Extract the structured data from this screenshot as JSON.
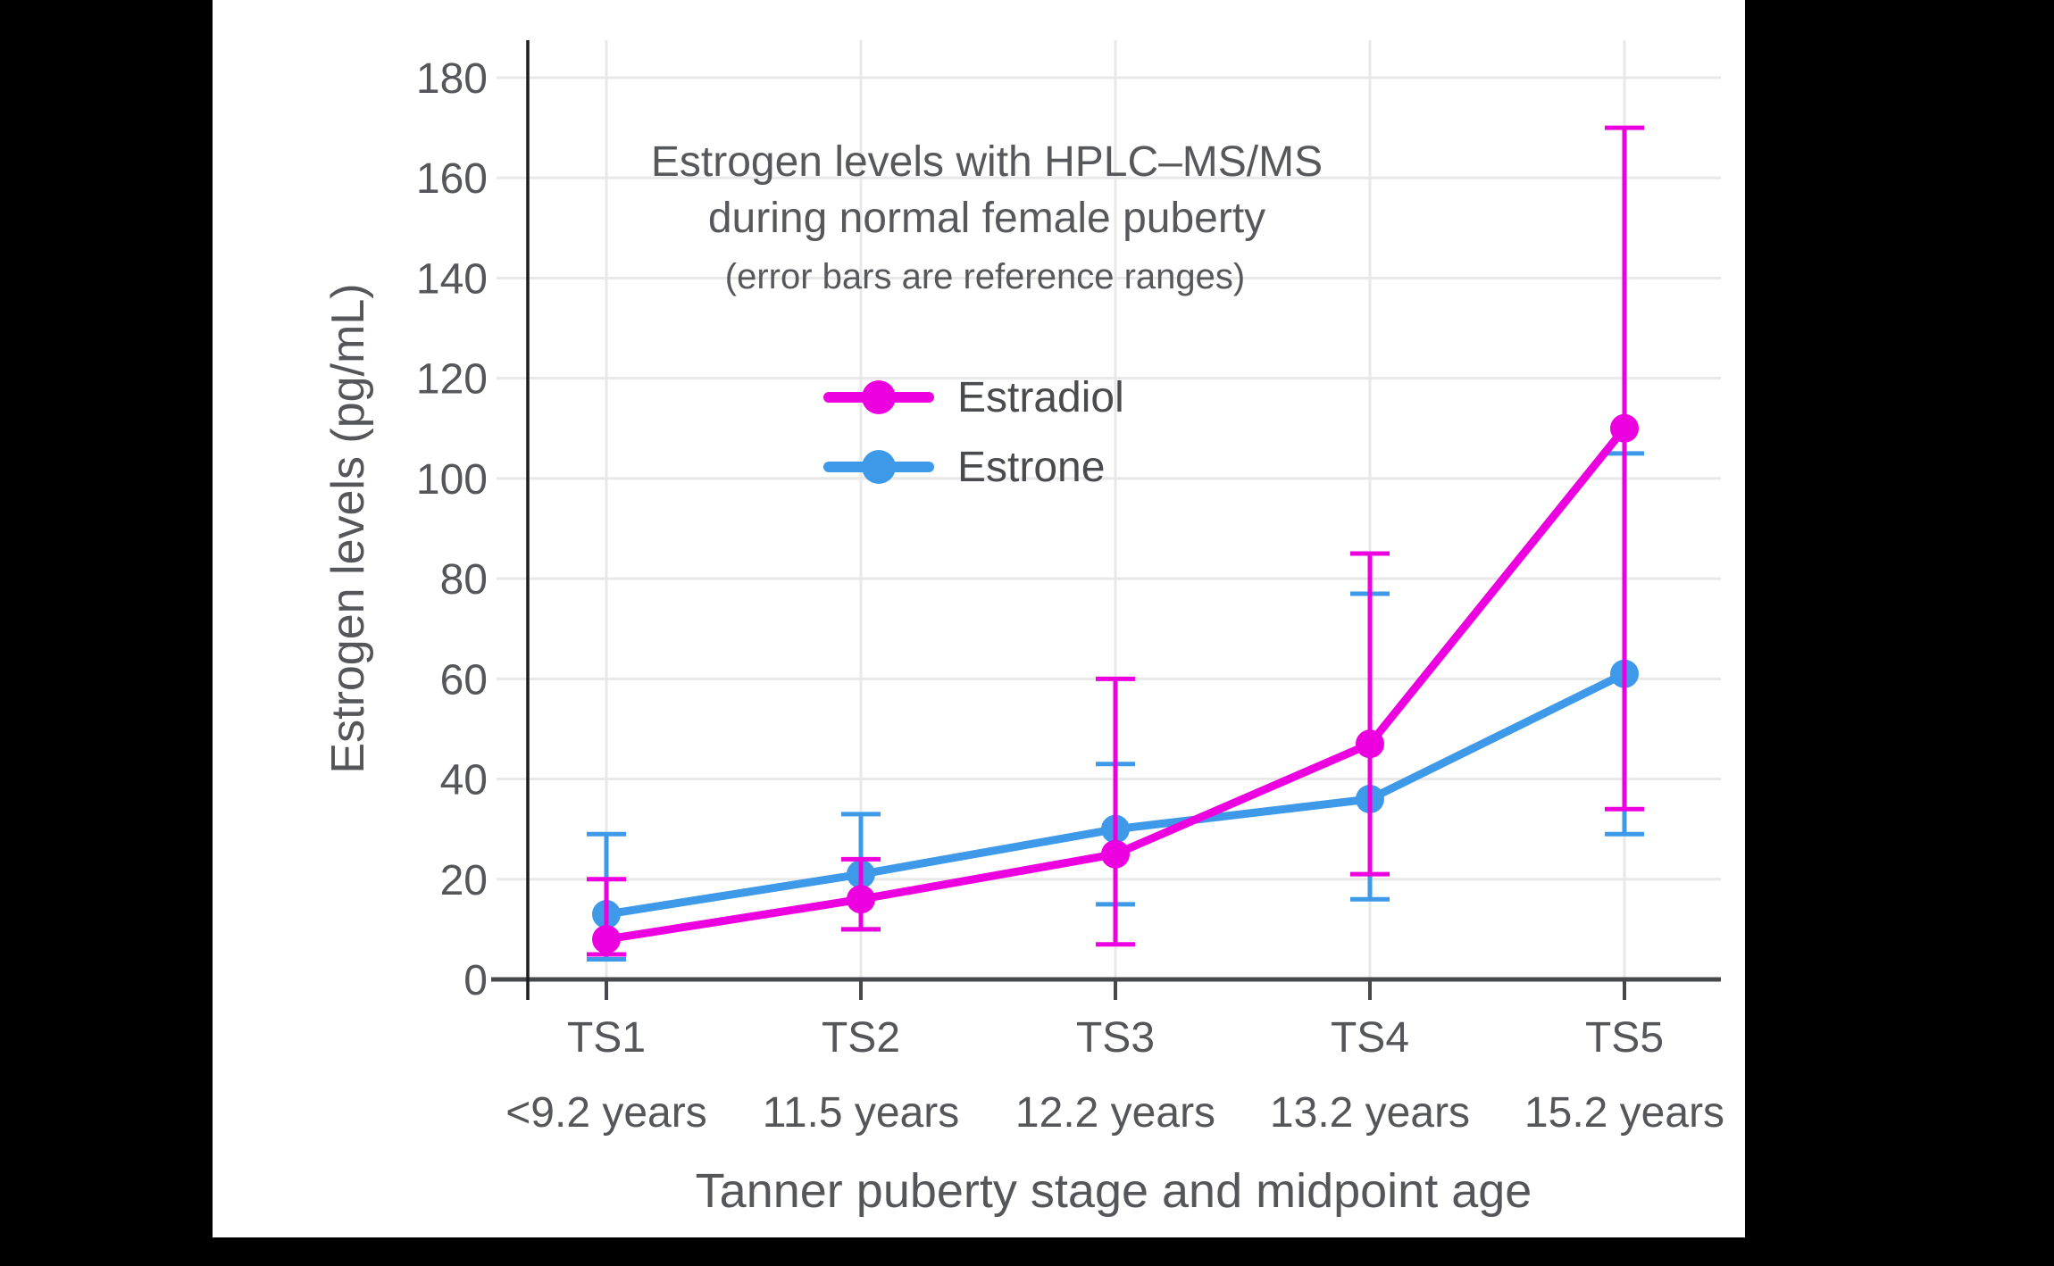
{
  "page": {
    "background": "#000000",
    "canvas_background": "#FFFFFF"
  },
  "chart_data": {
    "type": "line",
    "title_lines": [
      "Estrogen levels with HPLC–MS/MS",
      "during normal female puberty"
    ],
    "subtitle": "(error bars are reference ranges)",
    "xlabel": "Tanner puberty stage and midpoint age",
    "ylabel": "Estrogen levels (pg/mL)",
    "categories": [
      "TS1",
      "TS2",
      "TS3",
      "TS4",
      "TS5"
    ],
    "category_ages": [
      "<9.2 years",
      "11.5 years",
      "12.2 years",
      "13.2 years",
      "15.2 years"
    ],
    "y_ticks": [
      0,
      20,
      40,
      60,
      80,
      100,
      120,
      140,
      160,
      180
    ],
    "ylim": [
      0,
      187
    ],
    "grid": true,
    "legend_position": "upper-center-inside",
    "error_bar_meaning": "reference ranges",
    "series": [
      {
        "name": "Estradiol",
        "color": "#ED00E0",
        "values": [
          8,
          16,
          25,
          47,
          110
        ],
        "error_low": [
          5,
          10,
          7,
          21,
          34
        ],
        "error_high": [
          20,
          24,
          60,
          85,
          170
        ]
      },
      {
        "name": "Estrone",
        "color": "#3E9AE9",
        "values": [
          13,
          21,
          30,
          36,
          61
        ],
        "error_low": [
          4,
          10,
          15,
          16,
          29
        ],
        "error_high": [
          29,
          33,
          43,
          77,
          105
        ]
      }
    ],
    "colors": {
      "grid": "#E8E8E8",
      "x_axis": "#47484B",
      "y_axis": "#1C1C1E",
      "tick_text": "#55565A"
    }
  }
}
